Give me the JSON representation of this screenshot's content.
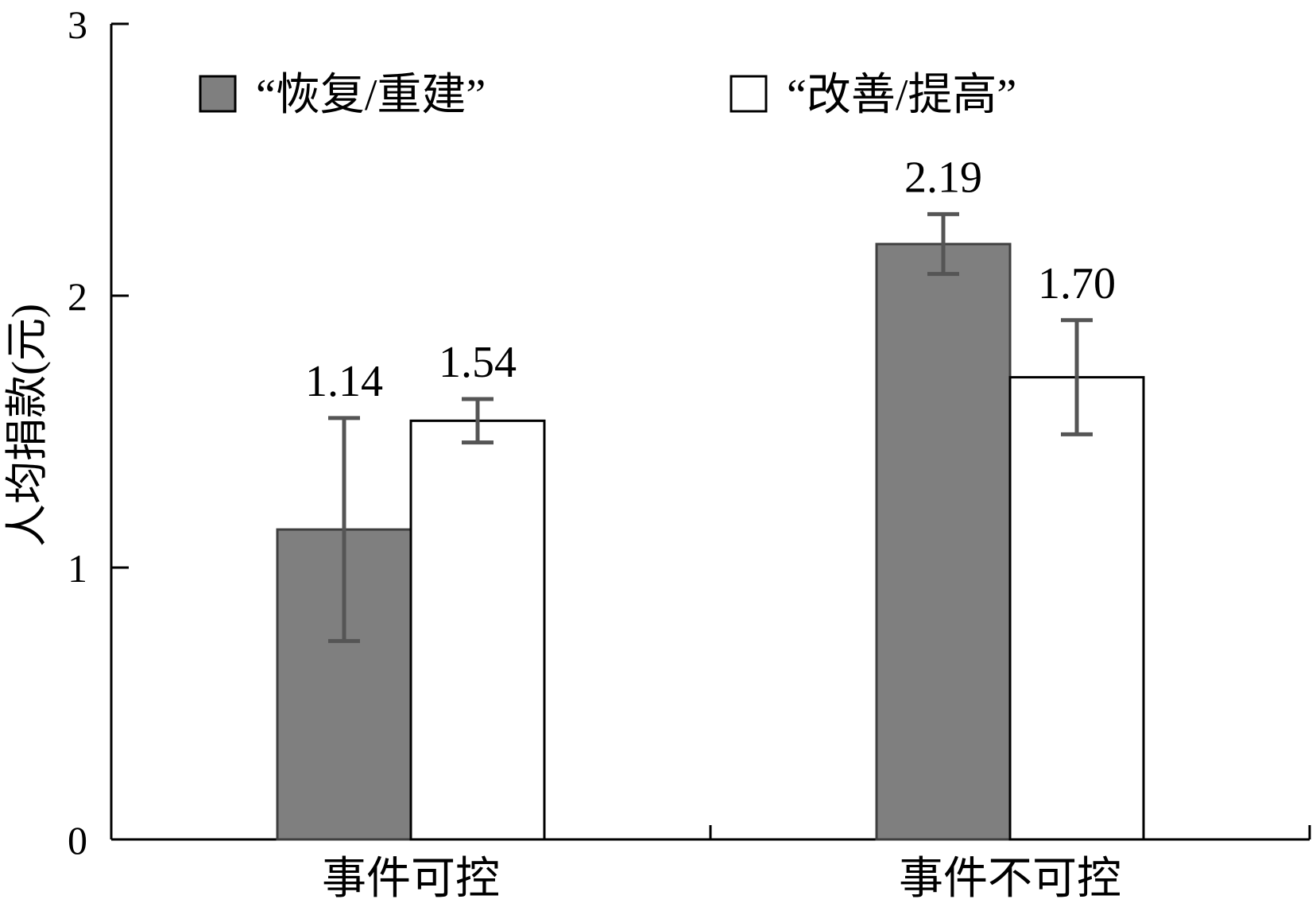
{
  "chart_data": {
    "type": "bar",
    "title": "",
    "xlabel": "",
    "ylabel": "人均捐款(元)",
    "ylim": [
      0,
      3
    ],
    "yticks": [
      0,
      1,
      2,
      3
    ],
    "categories": [
      "事件可控",
      "事件不可控"
    ],
    "legend_position": "top",
    "grid": false,
    "series": [
      {
        "name": "“恢复/重建”",
        "color": "#7f7f7f",
        "values": [
          1.14,
          2.19
        ],
        "labels": [
          "1.14",
          "2.19"
        ],
        "error_low": [
          0.73,
          2.08
        ],
        "error_high": [
          1.55,
          2.3
        ]
      },
      {
        "name": "“改善/提高”",
        "color": "#ffffff",
        "values": [
          1.54,
          1.7
        ],
        "labels": [
          "1.54",
          "1.70"
        ],
        "error_low": [
          1.46,
          1.49
        ],
        "error_high": [
          1.62,
          1.91
        ]
      }
    ]
  }
}
